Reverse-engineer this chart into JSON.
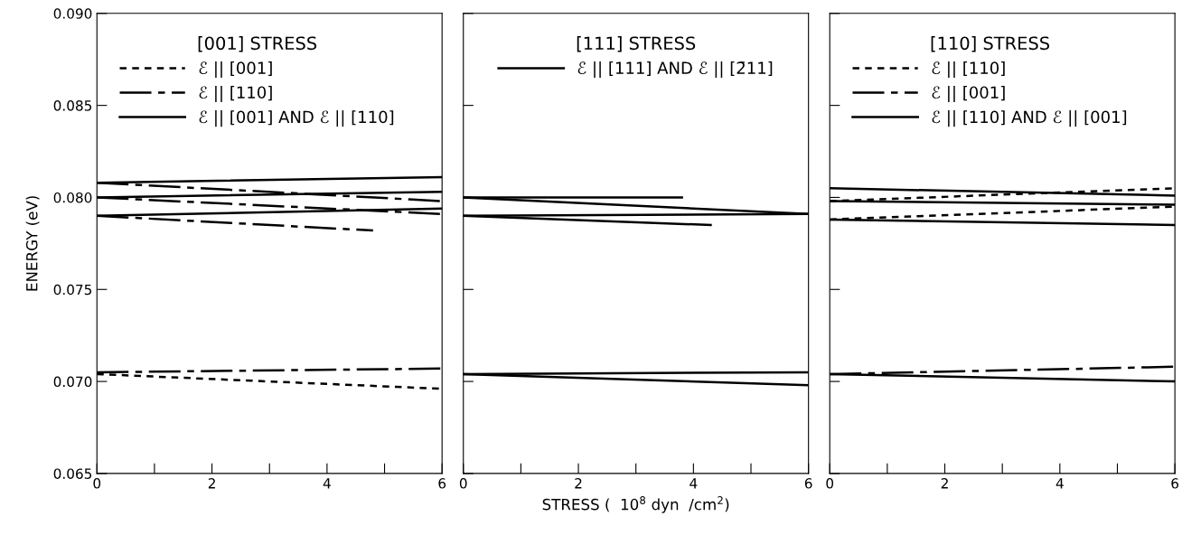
{
  "chart_data": [
    {
      "type": "line",
      "legend_title": "[001] STRESS",
      "ylabel": "ENERGY (eV)",
      "legend": "top left",
      "grid": false,
      "marker": "none",
      "xlim": [
        0,
        6
      ],
      "xticks": [
        0,
        {
          "value": 1,
          "label": null
        },
        2,
        {
          "value": 3,
          "label": null
        },
        4,
        {
          "value": 5,
          "label": null
        },
        6
      ],
      "ylim": [
        0.065,
        0.09
      ],
      "yticks": [
        0.065,
        {
          "value": 0.07,
          "label": "0.070"
        },
        0.075,
        {
          "value": 0.08,
          "label": "0.080"
        },
        0.085,
        {
          "value": 0.09,
          "label": "0.090"
        }
      ],
      "series": [
        {
          "name": "ℰ || [001]",
          "color": "#000000",
          "line_style": "dashed",
          "x": [
            0,
            6
          ],
          "values": [
            0.0704,
            0.0696
          ]
        },
        {
          "name": "ℰ || [110]",
          "color": "#000000",
          "line_style": "dashdot",
          "x": [
            0,
            6
          ],
          "values": [
            0.0808,
            0.0798
          ]
        },
        {
          "color": "#000000",
          "line_style": "dashdot",
          "x": [
            0,
            6
          ],
          "values": [
            0.08,
            0.0791
          ]
        },
        {
          "color": "#000000",
          "line_style": "dashdot",
          "x": [
            0,
            4.8
          ],
          "values": [
            0.079,
            0.0782
          ]
        },
        {
          "color": "#000000",
          "line_style": "dashdot",
          "x": [
            0,
            6
          ],
          "values": [
            0.0705,
            0.0707
          ]
        },
        {
          "name": "ℰ || [001] AND ℰ || [110]",
          "color": "#000000",
          "line_style": "solid",
          "x": [
            0,
            6
          ],
          "values": [
            0.0808,
            0.0811
          ]
        },
        {
          "color": "#000000",
          "line_style": "solid",
          "x": [
            0,
            6
          ],
          "values": [
            0.08,
            0.0803
          ]
        },
        {
          "color": "#000000",
          "line_style": "solid",
          "x": [
            0,
            6
          ],
          "values": [
            0.079,
            0.0794
          ]
        }
      ]
    },
    {
      "type": "line",
      "legend_title": "[111] STRESS",
      "legend": "top",
      "grid": false,
      "marker": "none",
      "tick_labels": "x",
      "xlim": [
        0,
        6
      ],
      "xticks": [
        0,
        {
          "value": 1,
          "label": null
        },
        2,
        {
          "value": 3,
          "label": null
        },
        4,
        {
          "value": 5,
          "label": null
        },
        6
      ],
      "ylim": [
        0.065,
        0.09
      ],
      "yticks": [
        0.065,
        0.07,
        0.075,
        0.08,
        0.085,
        0.09
      ],
      "xlabel": "STRESS (  10$^{8}$ dyn  /cm$^{2}$)",
      "series": [
        {
          "name": "ℰ || [111] AND ℰ || [2̄11]",
          "color": "#000000",
          "line_style": "solid",
          "x": [
            0,
            3.8
          ],
          "values": [
            0.08,
            0.08
          ]
        },
        {
          "color": "#000000",
          "line_style": "solid",
          "x": [
            0,
            6
          ],
          "values": [
            0.08,
            0.0791
          ]
        },
        {
          "color": "#000000",
          "line_style": "solid",
          "x": [
            0,
            6
          ],
          "values": [
            0.079,
            0.0791
          ]
        },
        {
          "color": "#000000",
          "line_style": "solid",
          "x": [
            0,
            4.3
          ],
          "values": [
            0.079,
            0.0785
          ]
        },
        {
          "color": "#000000",
          "line_style": "solid",
          "x": [
            0,
            6
          ],
          "values": [
            0.0704,
            0.0705
          ]
        },
        {
          "color": "#000000",
          "line_style": "solid",
          "x": [
            0,
            6
          ],
          "values": [
            0.0704,
            0.0698
          ]
        }
      ]
    },
    {
      "type": "line",
      "legend_title": "[110] STRESS",
      "legend": "top left",
      "grid": false,
      "marker": "none",
      "tick_labels": "x",
      "xlim": [
        0,
        6
      ],
      "xticks": [
        0,
        {
          "value": 1,
          "label": null
        },
        2,
        {
          "value": 3,
          "label": null
        },
        4,
        {
          "value": 5,
          "label": null
        },
        6
      ],
      "ylim": [
        0.065,
        0.09
      ],
      "yticks": [
        0.065,
        0.07,
        0.075,
        0.08,
        0.085,
        0.09
      ],
      "series": [
        {
          "name": "ℰ || [110]",
          "color": "#000000",
          "line_style": "dashed",
          "x": [
            0,
            6
          ],
          "values": [
            0.0798,
            0.0805
          ]
        },
        {
          "color": "#000000",
          "line_style": "dashed",
          "x": [
            0,
            6
          ],
          "values": [
            0.0788,
            0.0795
          ]
        },
        {
          "name": "ℰ || [001]",
          "color": "#000000",
          "line_style": "dashdot",
          "x": [
            0,
            6
          ],
          "values": [
            0.0704,
            0.0708
          ]
        },
        {
          "name": "ℰ || [110] AND ℰ || [001]",
          "color": "#000000",
          "line_style": "solid",
          "x": [
            0,
            6
          ],
          "values": [
            0.0805,
            0.0801
          ]
        },
        {
          "color": "#000000",
          "line_style": "solid",
          "x": [
            0,
            6
          ],
          "values": [
            0.0798,
            0.0796
          ]
        },
        {
          "color": "#000000",
          "line_style": "solid",
          "x": [
            0,
            6
          ],
          "values": [
            0.0788,
            0.0785
          ]
        },
        {
          "color": "#000000",
          "line_style": "solid",
          "x": [
            0,
            6
          ],
          "values": [
            0.0704,
            0.07
          ]
        }
      ]
    }
  ]
}
